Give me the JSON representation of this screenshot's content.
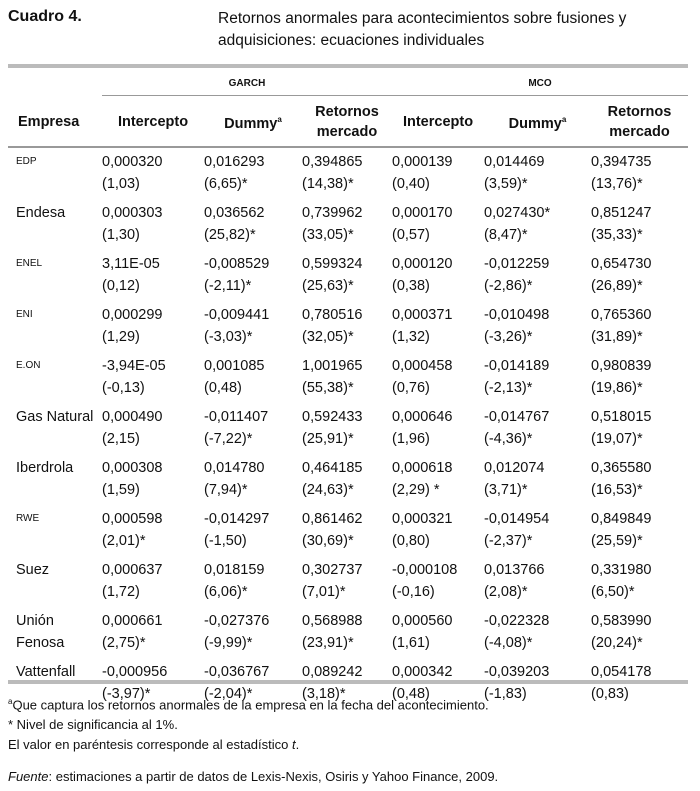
{
  "caption": "Cuadro 4.",
  "title": "Retornos anormales para acontecimientos sobre fusiones y adquisiciones: ecuaciones individuales",
  "groups": {
    "garch": "GARCH",
    "mco": "MCO"
  },
  "headers": [
    "Empresa",
    "Intercepto",
    "Dummy",
    "Retornos mercado",
    "Intercepto",
    "Dummy",
    "Retornos mercado"
  ],
  "dummy_sup": "a",
  "rows": [
    {
      "name": "EDP",
      "small": true,
      "v": [
        [
          "0,000320",
          "(1,03)"
        ],
        [
          "0,016293",
          "(6,65)*"
        ],
        [
          "0,394865",
          "(14,38)*"
        ],
        [
          "0,000139",
          "(0,40)"
        ],
        [
          "0,014469",
          "(3,59)*"
        ],
        [
          "0,394735",
          "(13,76)*"
        ]
      ]
    },
    {
      "name": "Endesa",
      "small": false,
      "v": [
        [
          "0,000303",
          "(1,30)"
        ],
        [
          "0,036562",
          "(25,82)*"
        ],
        [
          "0,739962",
          "(33,05)*"
        ],
        [
          "0,000170",
          "(0,57)"
        ],
        [
          "0,027430*",
          "(8,47)*"
        ],
        [
          "0,851247",
          "(35,33)*"
        ]
      ]
    },
    {
      "name": "ENEL",
      "small": true,
      "v": [
        [
          "3,11E-05",
          "(0,12)"
        ],
        [
          "-0,008529",
          "(-2,11)*"
        ],
        [
          "0,599324",
          "(25,63)*"
        ],
        [
          "0,000120",
          "(0,38)"
        ],
        [
          "-0,012259",
          "(-2,86)*"
        ],
        [
          "0,654730",
          "(26,89)*"
        ]
      ]
    },
    {
      "name": "ENI",
      "small": true,
      "v": [
        [
          "0,000299",
          "(1,29)"
        ],
        [
          "-0,009441",
          "(-3,03)*"
        ],
        [
          "0,780516",
          "(32,05)*"
        ],
        [
          "0,000371",
          "(1,32)"
        ],
        [
          "-0,010498",
          "(-3,26)*"
        ],
        [
          "0,765360",
          "(31,89)*"
        ]
      ]
    },
    {
      "name": "E.ON",
      "small": true,
      "v": [
        [
          "-3,94E-05",
          "(-0,13)"
        ],
        [
          "0,001085",
          "(0,48)"
        ],
        [
          "1,001965",
          "(55,38)*"
        ],
        [
          "0,000458",
          "(0,76)"
        ],
        [
          "-0,014189",
          "(-2,13)*"
        ],
        [
          "0,980839",
          "(19,86)*"
        ]
      ]
    },
    {
      "name": "Gas Natural",
      "small": false,
      "v": [
        [
          "0,000490",
          "(2,15)"
        ],
        [
          "-0,011407",
          "(-7,22)*"
        ],
        [
          "0,592433",
          "(25,91)*"
        ],
        [
          "0,000646",
          "(1,96)"
        ],
        [
          "-0,014767",
          "(-4,36)*"
        ],
        [
          "0,518015",
          "(19,07)*"
        ]
      ]
    },
    {
      "name": "Iberdrola",
      "small": false,
      "v": [
        [
          "0,000308",
          "(1,59)"
        ],
        [
          "0,014780",
          "(7,94)*"
        ],
        [
          "0,464185",
          "(24,63)*"
        ],
        [
          "0,000618",
          "(2,29) *"
        ],
        [
          "0,012074",
          "(3,71)*"
        ],
        [
          "0,365580",
          "(16,53)*"
        ]
      ]
    },
    {
      "name": "RWE",
      "small": true,
      "v": [
        [
          "0,000598",
          "(2,01)*"
        ],
        [
          "-0,014297",
          "(-1,50)"
        ],
        [
          "0,861462",
          "(30,69)*"
        ],
        [
          "0,000321",
          "(0,80)"
        ],
        [
          "-0,014954",
          "(-2,37)*"
        ],
        [
          "0,849849",
          "(25,59)*"
        ]
      ]
    },
    {
      "name": "Suez",
      "small": false,
      "v": [
        [
          "0,000637",
          "(1,72)"
        ],
        [
          "0,018159",
          "(6,06)*"
        ],
        [
          "0,302737",
          "(7,01)*"
        ],
        [
          "-0,000108",
          "(-0,16)"
        ],
        [
          "0,013766",
          "(2,08)*"
        ],
        [
          "0,331980",
          "(6,50)*"
        ]
      ]
    },
    {
      "name": "Unión Fenosa",
      "small": false,
      "v": [
        [
          "0,000661",
          "(2,75)*"
        ],
        [
          "-0,027376",
          "(-9,99)*"
        ],
        [
          "0,568988",
          "(23,91)*"
        ],
        [
          "0,000560",
          "(1,61)"
        ],
        [
          "-0,022328",
          "(-4,08)*"
        ],
        [
          "0,583990",
          "(20,24)*"
        ]
      ]
    },
    {
      "name": "Vattenfall",
      "small": false,
      "v": [
        [
          "-0,000956",
          "(-3,97)*"
        ],
        [
          "-0,036767",
          "(-2,04)*"
        ],
        [
          "0,089242",
          "(3,18)*"
        ],
        [
          "0,000342",
          "(0,48)"
        ],
        [
          "-0,039203",
          "(-1,83)"
        ],
        [
          "0,054178",
          "(0,83)"
        ]
      ]
    }
  ],
  "notes": {
    "a_sup": "a",
    "a": "Que captura los retornos anormales de la empresa en la fecha del acontecimiento.",
    "star": "* Nivel de significancia al 1%.",
    "paren": "El valor en paréntesis corresponde al estadístico ",
    "paren_t": "t",
    "paren_end": ".",
    "src_label": "Fuente",
    "src": ": estimaciones a partir de datos de Lexis-Nexis, Osiris y Yahoo Finance, 2009."
  }
}
